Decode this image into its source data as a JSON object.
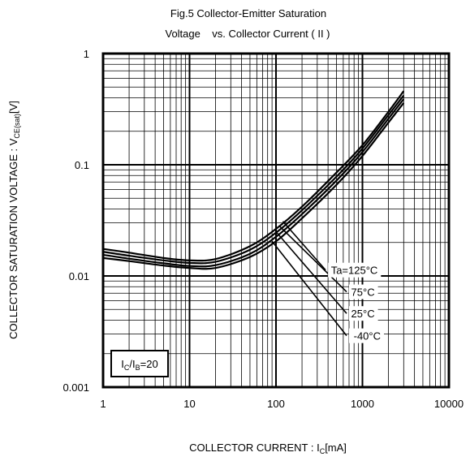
{
  "chart_data": {
    "type": "line",
    "title_line1": "Fig.5 Collector-Emitter Saturation",
    "title_line2": "Voltage    vs. Collector Current ( II )",
    "xlabel_main": "COLLECTOR CURRENT : I",
    "xlabel_sub": "C",
    "xlabel_unit": "[mA]",
    "ylabel_main": "COLLECTOR SATURATION VOLTAGE : V",
    "ylabel_sub": "CE(sat)",
    "ylabel_unit": "[V]",
    "x_scale": "log",
    "y_scale": "log",
    "xlim": [
      1,
      10000
    ],
    "ylim": [
      0.001,
      1
    ],
    "grid": true,
    "x_ticks": [
      {
        "value": 1,
        "label": "1"
      },
      {
        "value": 10,
        "label": "10"
      },
      {
        "value": 100,
        "label": "100"
      },
      {
        "value": 1000,
        "label": "1000"
      },
      {
        "value": 10000,
        "label": "10000"
      }
    ],
    "y_ticks": [
      {
        "value": 1,
        "label": "1"
      },
      {
        "value": 0.1,
        "label": "0.1"
      },
      {
        "value": 0.01,
        "label": "0.01"
      },
      {
        "value": 0.001,
        "label": "0.001"
      }
    ],
    "condition_box": {
      "main": "I",
      "sub1": "C",
      "slash": "/I",
      "sub2": "B",
      "rest": "=20"
    },
    "series": [
      {
        "name": "Ta=125°C",
        "label_point": [
          400,
          0.0113
        ],
        "curve_point": [
          120,
          0.031
        ],
        "points": [
          [
            1,
            0.0175
          ],
          [
            2,
            0.0162
          ],
          [
            5,
            0.0145
          ],
          [
            10,
            0.0138
          ],
          [
            20,
            0.0142
          ],
          [
            50,
            0.0185
          ],
          [
            100,
            0.0265
          ],
          [
            200,
            0.042
          ],
          [
            500,
            0.085
          ],
          [
            1000,
            0.15
          ],
          [
            2000,
            0.3
          ],
          [
            3000,
            0.46
          ]
        ]
      },
      {
        "name": "75°C",
        "label_point": [
          700,
          0.0072
        ],
        "curve_point": [
          110,
          0.028
        ],
        "points": [
          [
            1,
            0.0165
          ],
          [
            2,
            0.0152
          ],
          [
            5,
            0.0138
          ],
          [
            10,
            0.0131
          ],
          [
            20,
            0.0134
          ],
          [
            50,
            0.0172
          ],
          [
            100,
            0.0245
          ],
          [
            200,
            0.039
          ],
          [
            500,
            0.078
          ],
          [
            1000,
            0.14
          ],
          [
            2000,
            0.28
          ],
          [
            3000,
            0.42
          ]
        ]
      },
      {
        "name": "25°C",
        "label_point": [
          700,
          0.0046
        ],
        "curve_point": [
          100,
          0.025
        ],
        "points": [
          [
            1,
            0.0155
          ],
          [
            2,
            0.0143
          ],
          [
            5,
            0.013
          ],
          [
            10,
            0.0123
          ],
          [
            20,
            0.0125
          ],
          [
            50,
            0.0158
          ],
          [
            100,
            0.0225
          ],
          [
            200,
            0.036
          ],
          [
            500,
            0.072
          ],
          [
            1000,
            0.13
          ],
          [
            2000,
            0.26
          ],
          [
            3000,
            0.39
          ]
        ]
      },
      {
        "name": "-40°C",
        "label_point": [
          700,
          0.0029
        ],
        "curve_point": [
          90,
          0.0205
        ],
        "points": [
          [
            1,
            0.0145
          ],
          [
            2,
            0.0136
          ],
          [
            5,
            0.0124
          ],
          [
            10,
            0.0118
          ],
          [
            20,
            0.0118
          ],
          [
            50,
            0.0148
          ],
          [
            100,
            0.0205
          ],
          [
            200,
            0.033
          ],
          [
            500,
            0.066
          ],
          [
            1000,
            0.12
          ],
          [
            2000,
            0.24
          ],
          [
            3000,
            0.36
          ]
        ]
      }
    ]
  }
}
